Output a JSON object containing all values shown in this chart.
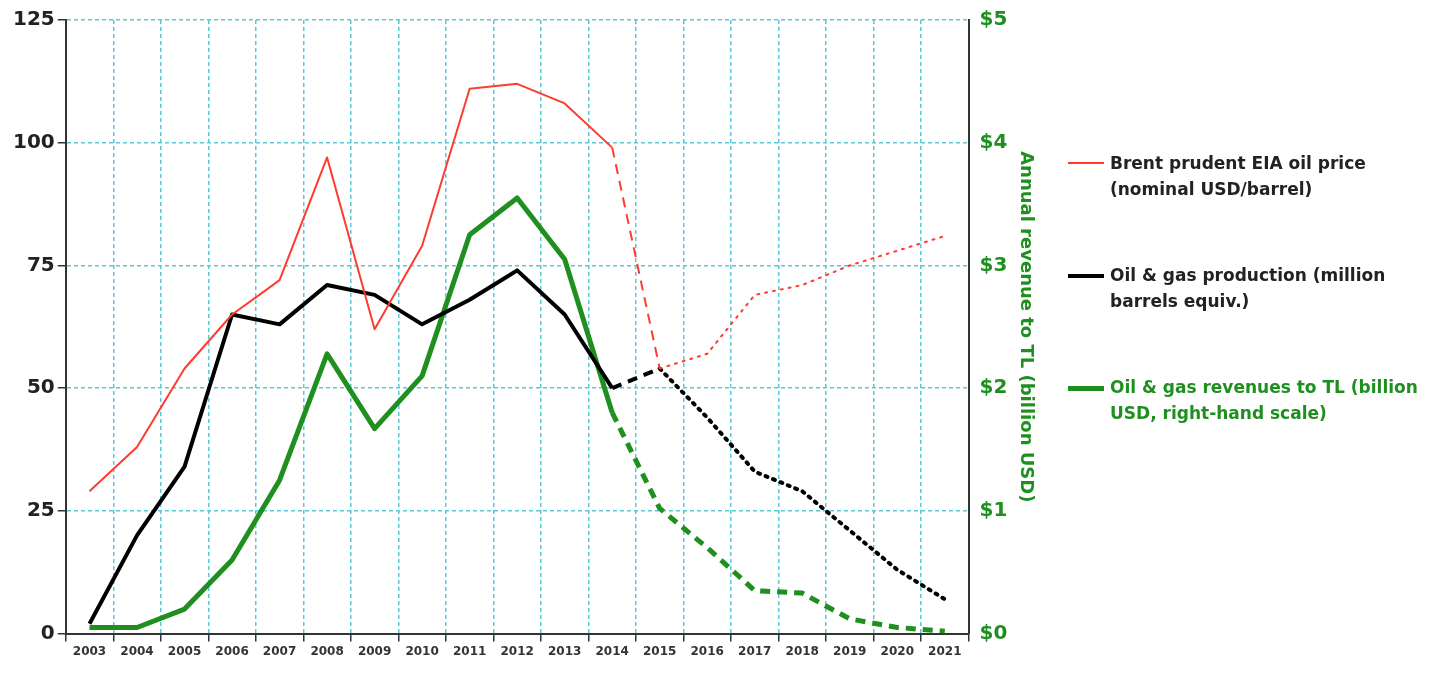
{
  "chart_data": {
    "type": "line",
    "categories": [
      "2003",
      "2004",
      "2005",
      "2006",
      "2007",
      "2008",
      "2009",
      "2010",
      "2011",
      "2012",
      "2013",
      "2014",
      "2015",
      "2016",
      "2017",
      "2018",
      "2019",
      "2020",
      "2021"
    ],
    "y2label": "Annual revenue to TL (billion USD)",
    "ylim": [
      0,
      125
    ],
    "yticks": [
      0,
      25,
      50,
      75,
      100,
      125
    ],
    "y2lim": [
      0,
      5
    ],
    "y2ticks": [
      {
        "value": 0,
        "label": "$0"
      },
      {
        "value": 1,
        "label": "$1"
      },
      {
        "value": 2,
        "label": "$2"
      },
      {
        "value": 3,
        "label": "$3"
      },
      {
        "value": 4,
        "label": "$4"
      },
      {
        "value": 5,
        "label": "$5"
      }
    ],
    "grid": true,
    "legend": "right",
    "series": [
      {
        "name": "Brent prudent EIA oil price (nominal USD/barrel)",
        "color": "#ff3b2f",
        "line_style": "solid",
        "values": [
          29,
          38,
          54,
          65,
          72,
          97,
          62,
          79,
          111,
          112,
          108,
          99,
          null,
          null,
          null,
          null,
          null,
          null,
          null
        ]
      },
      {
        "color": "#ff3b2f",
        "line_style": "dashed",
        "values": [
          null,
          null,
          null,
          null,
          null,
          null,
          null,
          null,
          null,
          null,
          null,
          99,
          54,
          null,
          null,
          null,
          null,
          null,
          null
        ]
      },
      {
        "color": "#ff3b2f",
        "line_style": "dotted",
        "values": [
          null,
          null,
          null,
          null,
          null,
          null,
          null,
          null,
          null,
          null,
          null,
          null,
          54,
          57,
          69,
          71,
          75,
          78,
          81
        ]
      },
      {
        "name": "Oil & gas production (million barrels equiv.)",
        "color": "#000000",
        "line_style": "solid",
        "values": [
          2,
          20,
          34,
          65,
          63,
          71,
          69,
          63,
          68,
          74,
          65,
          50,
          null,
          null,
          null,
          null,
          null,
          null,
          null
        ]
      },
      {
        "color": "#000000",
        "line_style": "dashed",
        "values": [
          null,
          null,
          null,
          null,
          null,
          null,
          null,
          null,
          null,
          null,
          null,
          50,
          54,
          null,
          null,
          null,
          null,
          null,
          null
        ]
      },
      {
        "color": "#000000",
        "line_style": "dotted",
        "values": [
          null,
          null,
          null,
          null,
          null,
          null,
          null,
          null,
          null,
          null,
          null,
          null,
          54,
          44,
          33,
          29,
          21,
          13,
          7
        ]
      },
      {
        "name": "Oil & gas revenues to TL (billion USD, right-hand scale)",
        "color": "#1f8f1f",
        "axis": "y2",
        "line_style": "solid",
        "values": [
          0.05,
          0.05,
          0.2,
          0.6,
          1.25,
          2.28,
          1.67,
          2.1,
          3.25,
          3.55,
          3.05,
          1.8,
          null,
          null,
          null,
          null,
          null,
          null,
          null
        ]
      },
      {
        "color": "#1f8f1f",
        "axis": "y2",
        "line_style": "dashed",
        "values": [
          null,
          null,
          null,
          null,
          null,
          null,
          null,
          null,
          null,
          null,
          null,
          1.8,
          1.02,
          0.7,
          0.35,
          0.33,
          0.12,
          0.05,
          0.02
        ]
      }
    ]
  }
}
